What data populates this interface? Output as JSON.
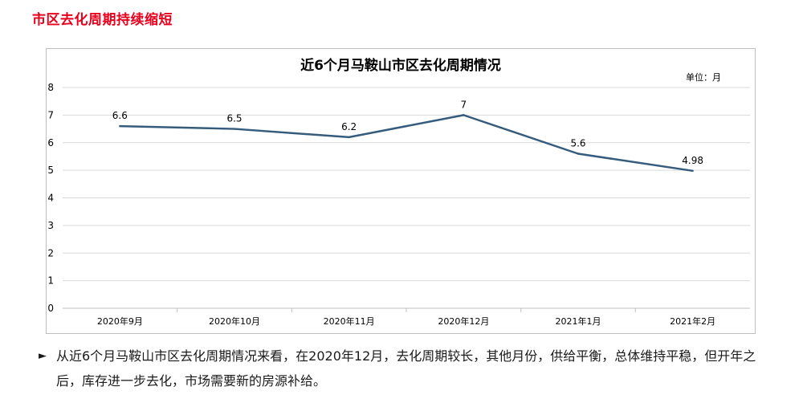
{
  "section_title": "市区去化周期持续缩短",
  "summary": {
    "bullet": "►",
    "text": "从近6个月马鞍山市区去化周期情况来看，在2020年12月，去化周期较长，其他月份，供给平衡，总体维持平稳，但开年之后，库存进一步去化，市场需要新的房源补给。"
  },
  "colors": {
    "title_red": "#e8001c",
    "line": "#355c7d",
    "grid": "#d9d9d9"
  },
  "chart_data": {
    "type": "line",
    "title": "近6个月马鞍山市区去化周期情况",
    "unit_label": "单位：月",
    "categories": [
      "2020年9月",
      "2020年10月",
      "2020年11月",
      "2020年12月",
      "2021年1月",
      "2021年2月"
    ],
    "series": [
      {
        "values": [
          6.6,
          6.5,
          6.2,
          7,
          5.6,
          4.98
        ],
        "labels": [
          "6.6",
          "6.5",
          "6.2",
          "7",
          "5.6",
          "4.98"
        ]
      }
    ],
    "ylim": [
      0,
      8
    ],
    "yticks": [
      0,
      1,
      2,
      3,
      4,
      5,
      6,
      7,
      8
    ],
    "grid": true,
    "legend": "none"
  }
}
